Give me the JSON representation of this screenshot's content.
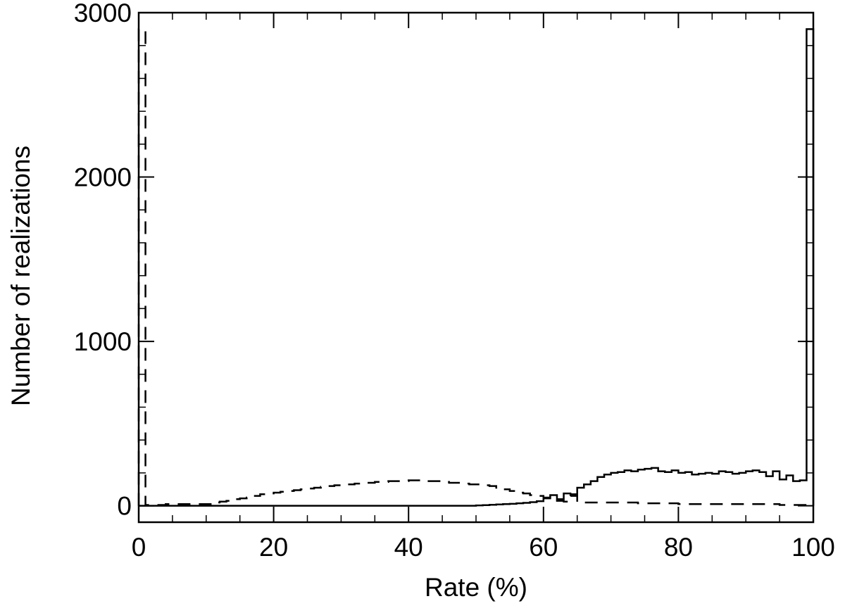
{
  "chart_data": {
    "type": "histogram",
    "title": "",
    "xlabel": "Rate (%)",
    "ylabel": "Number of realizations",
    "xlim": [
      0,
      100
    ],
    "ylim": [
      -100,
      3000
    ],
    "xticks": [
      0,
      20,
      40,
      60,
      80,
      100
    ],
    "yticks": [
      0,
      1000,
      2000,
      3000
    ],
    "bin_width": 1,
    "legend": "none",
    "grid": false,
    "series": [
      {
        "style": "solid",
        "values": [
          0,
          0,
          0,
          0,
          0,
          0,
          0,
          0,
          0,
          0,
          0,
          0,
          0,
          0,
          0,
          0,
          0,
          0,
          0,
          0,
          0,
          0,
          0,
          0,
          0,
          0,
          0,
          0,
          0,
          0,
          0,
          0,
          0,
          0,
          0,
          0,
          0,
          0,
          0,
          0,
          0,
          0,
          0,
          0,
          0,
          0,
          0,
          0,
          0,
          0,
          2,
          4,
          6,
          8,
          10,
          12,
          15,
          18,
          22,
          28,
          45,
          65,
          40,
          75,
          70,
          110,
          130,
          150,
          175,
          190,
          200,
          205,
          215,
          210,
          220,
          225,
          230,
          210,
          205,
          215,
          200,
          205,
          190,
          195,
          200,
          195,
          210,
          205,
          195,
          200,
          210,
          215,
          205,
          180,
          210,
          160,
          185,
          150,
          155,
          2900
        ],
        "color": "#000000"
      },
      {
        "style": "dashed",
        "values": [
          2900,
          5,
          5,
          5,
          10,
          10,
          10,
          10,
          10,
          10,
          10,
          20,
          25,
          30,
          40,
          45,
          50,
          60,
          70,
          75,
          80,
          85,
          90,
          95,
          100,
          105,
          110,
          115,
          120,
          125,
          130,
          130,
          135,
          140,
          140,
          145,
          145,
          150,
          150,
          150,
          155,
          155,
          150,
          150,
          150,
          145,
          140,
          140,
          135,
          130,
          130,
          125,
          120,
          110,
          100,
          90,
          80,
          75,
          65,
          60,
          50,
          45,
          30,
          25,
          60,
          30,
          20,
          20,
          20,
          20,
          20,
          20,
          20,
          20,
          15,
          15,
          15,
          15,
          15,
          15,
          10,
          10,
          10,
          10,
          10,
          10,
          10,
          10,
          10,
          10,
          10,
          10,
          10,
          10,
          10,
          5,
          5,
          5,
          5,
          5
        ],
        "color": "#000000"
      }
    ]
  }
}
